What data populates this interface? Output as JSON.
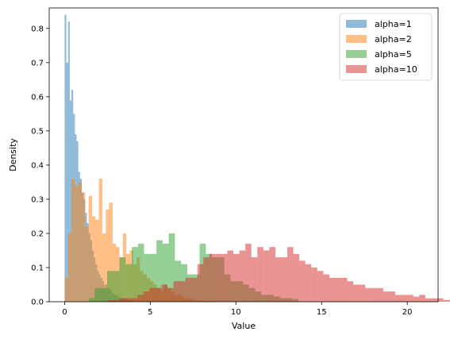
{
  "chart_data": {
    "type": "histogram",
    "xlabel": "Value",
    "ylabel": "Density",
    "xlim": [
      -0.9,
      21.8
    ],
    "ylim": [
      0,
      0.86
    ],
    "xticks": [
      0,
      5,
      10,
      15,
      20
    ],
    "yticks": [
      0.0,
      0.1,
      0.2,
      0.3,
      0.4,
      0.5,
      0.6,
      0.7,
      0.8
    ],
    "legend_position": "top-right",
    "alpha": 0.5,
    "series": [
      {
        "name": "alpha=1",
        "color": "#1f77b4",
        "bin_start": 0.0,
        "bin_width": 0.1,
        "values": [
          0.84,
          0.7,
          0.82,
          0.59,
          0.62,
          0.55,
          0.49,
          0.47,
          0.38,
          0.36,
          0.32,
          0.3,
          0.26,
          0.23,
          0.2,
          0.18,
          0.15,
          0.13,
          0.11,
          0.09,
          0.08,
          0.07,
          0.06,
          0.05,
          0.05,
          0.04,
          0.035,
          0.03,
          0.025,
          0.02,
          0.02,
          0.015,
          0.012,
          0.01,
          0.01,
          0.008,
          0.007,
          0.005,
          0.004,
          0.003
        ]
      },
      {
        "name": "alpha=2",
        "color": "#ff7f0e",
        "bin_start": 0.0,
        "bin_width": 0.2,
        "values": [
          0.07,
          0.2,
          0.36,
          0.34,
          0.35,
          0.32,
          0.22,
          0.31,
          0.25,
          0.24,
          0.36,
          0.2,
          0.27,
          0.29,
          0.17,
          0.16,
          0.13,
          0.2,
          0.14,
          0.15,
          0.11,
          0.13,
          0.09,
          0.08,
          0.07,
          0.06,
          0.05,
          0.04,
          0.03,
          0.05,
          0.04,
          0.03,
          0.02,
          0.02,
          0.015,
          0.01,
          0.01,
          0.008,
          0.005,
          0.004,
          0.003,
          0.002,
          0.002,
          0.001
        ]
      },
      {
        "name": "alpha=5",
        "color": "#2ca02c",
        "bin_start": 1.4,
        "bin_width": 0.36,
        "values": [
          0.01,
          0.04,
          0.04,
          0.09,
          0.09,
          0.13,
          0.11,
          0.16,
          0.17,
          0.14,
          0.14,
          0.18,
          0.17,
          0.2,
          0.12,
          0.11,
          0.08,
          0.08,
          0.17,
          0.14,
          0.13,
          0.13,
          0.08,
          0.06,
          0.06,
          0.05,
          0.04,
          0.03,
          0.02,
          0.02,
          0.015,
          0.01,
          0.01,
          0.008
        ]
      },
      {
        "name": "alpha=10",
        "color": "#d62728",
        "bin_start": 2.5,
        "bin_width": 0.35,
        "values": [
          0.005,
          0.005,
          0.01,
          0.01,
          0.01,
          0.02,
          0.03,
          0.04,
          0.04,
          0.05,
          0.04,
          0.06,
          0.06,
          0.07,
          0.07,
          0.11,
          0.13,
          0.14,
          0.14,
          0.14,
          0.15,
          0.14,
          0.15,
          0.17,
          0.13,
          0.16,
          0.15,
          0.16,
          0.13,
          0.13,
          0.16,
          0.14,
          0.12,
          0.11,
          0.1,
          0.09,
          0.08,
          0.07,
          0.07,
          0.07,
          0.06,
          0.05,
          0.05,
          0.04,
          0.04,
          0.04,
          0.03,
          0.03,
          0.02,
          0.02,
          0.02,
          0.015,
          0.02,
          0.01,
          0.01,
          0.01,
          0.005,
          0.005
        ]
      }
    ]
  }
}
